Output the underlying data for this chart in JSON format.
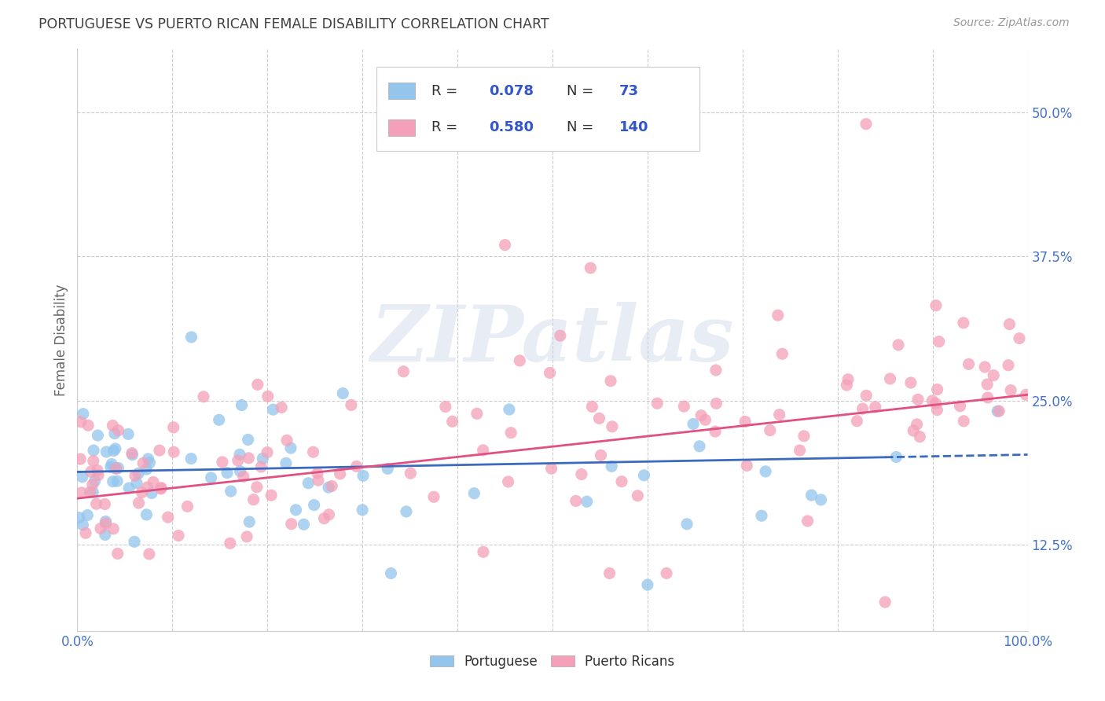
{
  "title": "PORTUGUESE VS PUERTO RICAN FEMALE DISABILITY CORRELATION CHART",
  "source": "Source: ZipAtlas.com",
  "ylabel": "Female Disability",
  "xlim": [
    0.0,
    1.0
  ],
  "ylim": [
    0.05,
    0.555
  ],
  "xticks": [
    0.0,
    0.1,
    0.2,
    0.3,
    0.4,
    0.5,
    0.6,
    0.7,
    0.8,
    0.9,
    1.0
  ],
  "yticks": [
    0.125,
    0.25,
    0.375,
    0.5
  ],
  "yticklabels": [
    "12.5%",
    "25.0%",
    "37.5%",
    "50.0%"
  ],
  "portuguese_color": "#93c5ed",
  "puerto_rican_color": "#f4a0b8",
  "portuguese_line_color": "#3b6abf",
  "puerto_rican_line_color": "#e05080",
  "portuguese_R": 0.078,
  "portuguese_N": 73,
  "puerto_rican_R": 0.58,
  "puerto_rican_N": 140,
  "watermark": "ZIPatlas",
  "background_color": "#ffffff",
  "grid_color": "#cccccc",
  "title_color": "#404040",
  "legend_text_color": "#303030",
  "value_color": "#3355cc",
  "axis_tick_color": "#4472c4"
}
